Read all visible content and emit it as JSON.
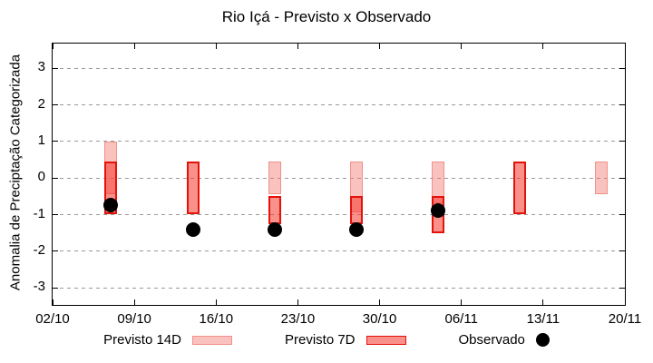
{
  "chart_data": {
    "type": "bar",
    "subtype": "forecast-range-bars-with-observed-scatter",
    "title": "Rio Içá - Previsto x Observado",
    "ylabel": "Anomalia de Preciptação Categorizada",
    "xlabel": "",
    "x_axis": {
      "tick_labels": [
        "02/10",
        "09/10",
        "16/10",
        "23/10",
        "30/10",
        "06/11",
        "13/11",
        "20/11"
      ],
      "tick_days": [
        0,
        7,
        14,
        21,
        28,
        35,
        42,
        49
      ],
      "range_days": [
        0,
        49
      ]
    },
    "y_axis": {
      "ticks": [
        3,
        2,
        1,
        0,
        -1,
        -2,
        -3
      ],
      "ylim": [
        -3.47,
        3.68
      ],
      "grid": "dashed-horizontal"
    },
    "series": [
      {
        "name": "Previsto 14D",
        "key": "previsto14",
        "type": "range-bar",
        "fill": "rgba(242,110,100,0.42)",
        "border": "#f0918a",
        "points": [
          {
            "date": "07/10",
            "day": 5,
            "high": 1.0,
            "low": -0.45
          },
          {
            "date": "21/10",
            "day": 19,
            "high": 0.45,
            "low": -0.45
          },
          {
            "date": "28/10",
            "day": 26,
            "high": 0.45,
            "low": -0.95
          },
          {
            "date": "04/11",
            "day": 33,
            "high": 0.45,
            "low": -0.7
          },
          {
            "date": "18/11",
            "day": 47,
            "high": 0.45,
            "low": -0.45
          }
        ]
      },
      {
        "name": "Previsto 7D",
        "key": "previsto7",
        "type": "range-bar",
        "fill": "rgba(244,54,42,0.55)",
        "border": "#e3120b",
        "points": [
          {
            "date": "07/10",
            "day": 5,
            "high": 0.45,
            "low": -1.0
          },
          {
            "date": "14/10",
            "day": 12,
            "high": 0.45,
            "low": -1.0
          },
          {
            "date": "21/10",
            "day": 19,
            "high": -0.5,
            "low": -1.25
          },
          {
            "date": "28/10",
            "day": 26,
            "high": -0.5,
            "low": -1.25
          },
          {
            "date": "04/11",
            "day": 33,
            "high": -0.5,
            "low": -1.5
          },
          {
            "date": "11/11",
            "day": 40,
            "high": 0.45,
            "low": -1.0
          }
        ]
      },
      {
        "name": "Observado",
        "key": "observado",
        "type": "scatter",
        "fill": "#000000",
        "points": [
          {
            "date": "07/10",
            "day": 5,
            "value": -0.75
          },
          {
            "date": "14/10",
            "day": 12,
            "value": -1.4
          },
          {
            "date": "21/10",
            "day": 19,
            "value": -1.4
          },
          {
            "date": "28/10",
            "day": 26,
            "value": -1.4
          },
          {
            "date": "04/11",
            "day": 33,
            "value": -0.9
          }
        ]
      }
    ],
    "legend": {
      "position": "bottom-center",
      "items": [
        {
          "label": "Previsto 14D",
          "shape": "rect",
          "fill": "rgba(242,110,100,0.42)",
          "border": "#f0918a"
        },
        {
          "label": "Previsto 7D",
          "shape": "rect",
          "fill": "rgba(244,54,42,0.55)",
          "border": "#e3120b"
        },
        {
          "label": "Observado",
          "shape": "circle",
          "fill": "#000000"
        }
      ]
    }
  }
}
